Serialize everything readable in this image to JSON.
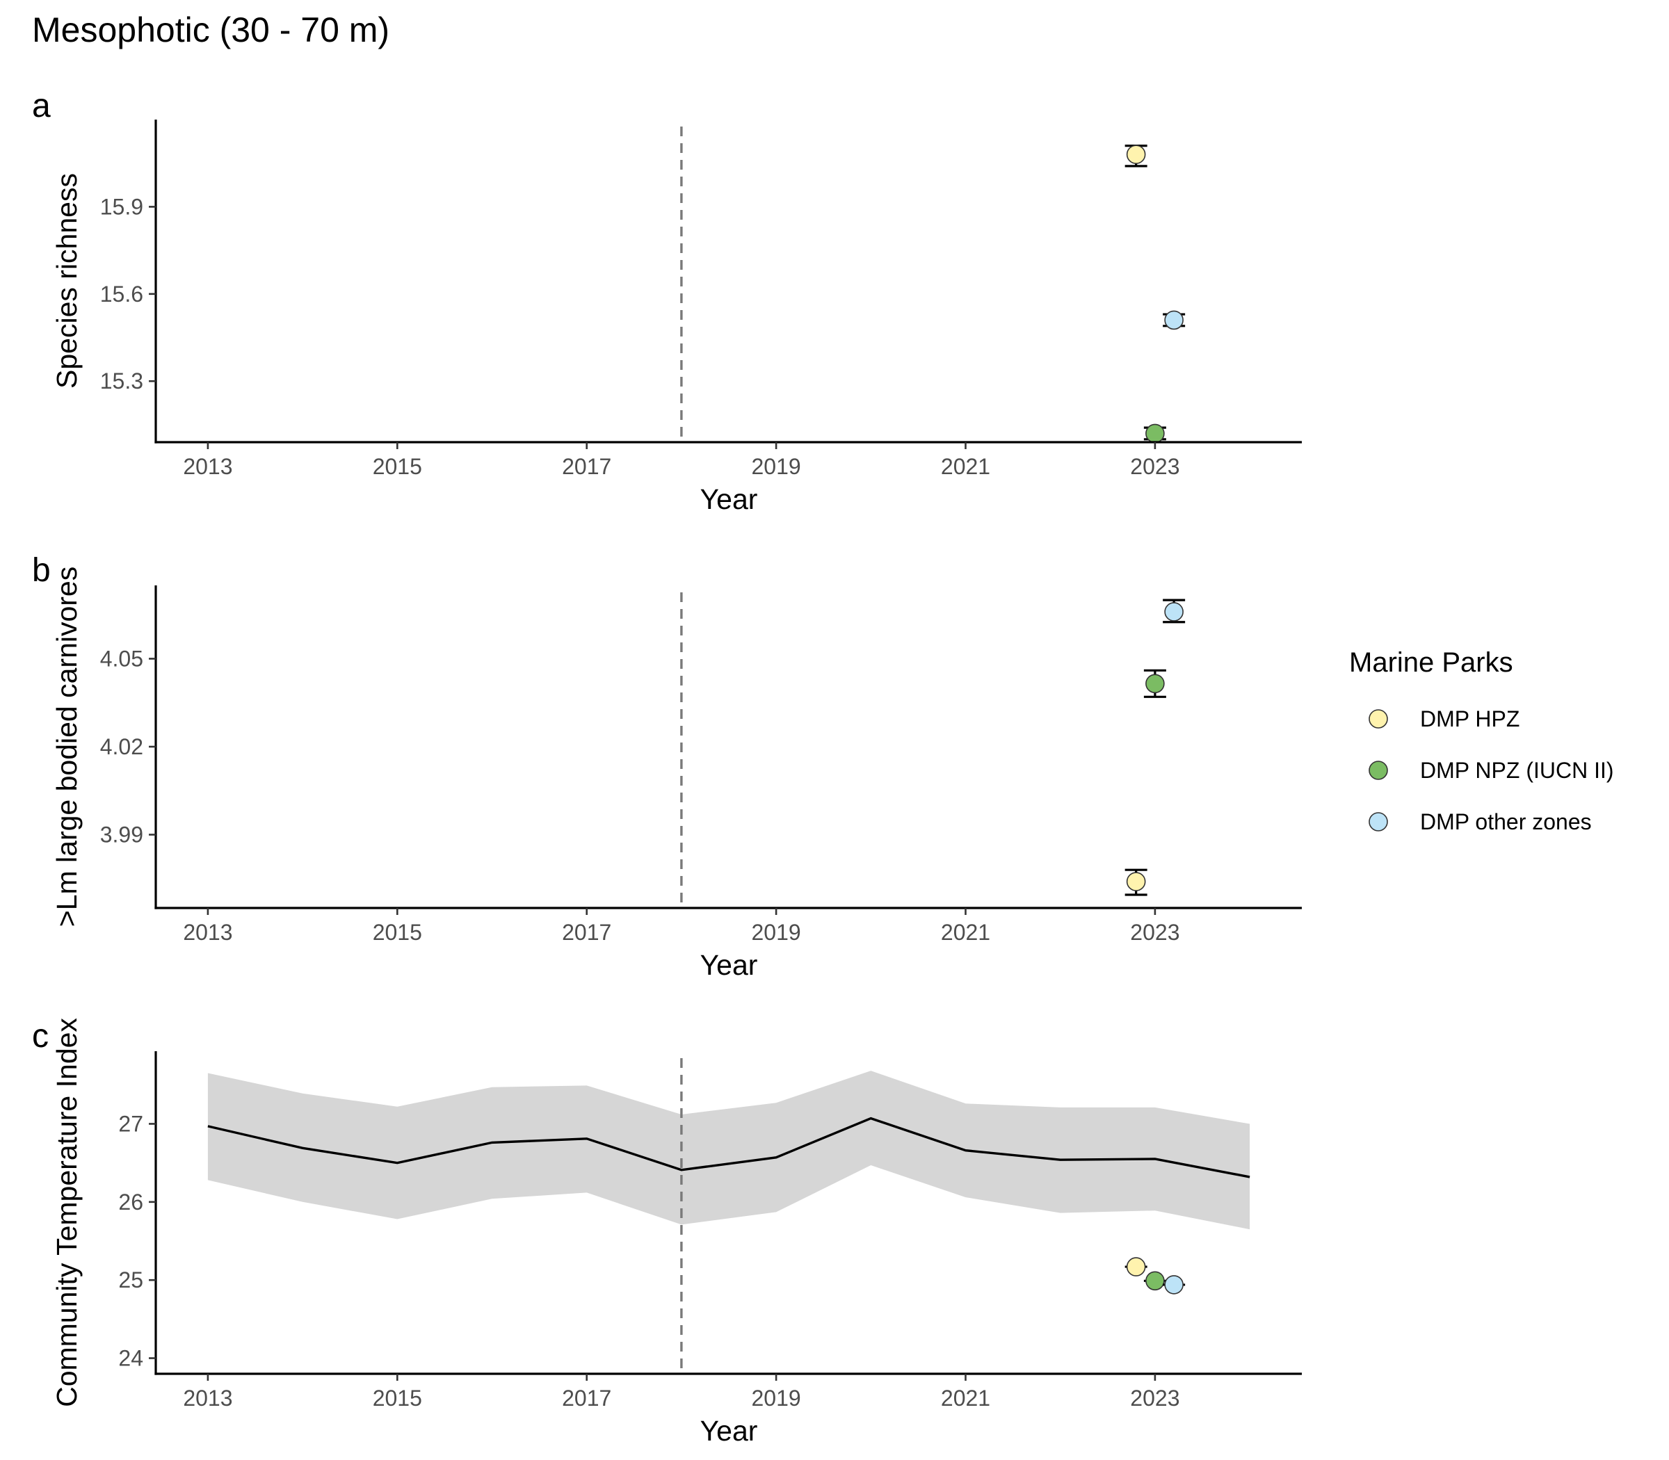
{
  "title": "Mesophotic (30 - 70 m)",
  "legend": {
    "title": "Marine Parks",
    "placement": "right",
    "entries": [
      {
        "label": "DMP HPZ",
        "color": "#FFF3AE"
      },
      {
        "label": "DMP NPZ (IUCN II)",
        "color": "#7BBC63"
      },
      {
        "label": "DMP other zones",
        "color": "#BDE3F7"
      }
    ]
  },
  "chart_data": [
    {
      "tag": "a",
      "type": "scatter",
      "xlabel": "Year",
      "ylabel": "Species richness",
      "xlim": [
        2012.45,
        2024.55
      ],
      "ylim": [
        15.09,
        16.2
      ],
      "x_ticks": [
        2013,
        2015,
        2017,
        2019,
        2021,
        2023
      ],
      "y_ticks": [
        15.3,
        15.6,
        15.9
      ],
      "y_tick_labels": [
        "15.3",
        "15.6",
        "15.9"
      ],
      "reference_x": 2018,
      "series": [
        {
          "name": "DMP HPZ",
          "points": [
            {
              "x": 2022.8,
              "y": 16.08,
              "lo": 16.04,
              "hi": 16.11
            }
          ]
        },
        {
          "name": "DMP NPZ (IUCN II)",
          "points": [
            {
              "x": 2023.0,
              "y": 15.12,
              "lo": 15.1,
              "hi": 15.14
            }
          ]
        },
        {
          "name": "DMP other zones",
          "points": [
            {
              "x": 2023.2,
              "y": 15.51,
              "lo": 15.49,
              "hi": 15.53
            }
          ]
        }
      ]
    },
    {
      "tag": "b",
      "type": "scatter",
      "xlabel": "Year",
      "ylabel": ">Lm large bodied carnivores",
      "xlim": [
        2012.45,
        2024.55
      ],
      "ylim": [
        3.965,
        4.075
      ],
      "x_ticks": [
        2013,
        2015,
        2017,
        2019,
        2021,
        2023
      ],
      "y_ticks": [
        3.99,
        4.02,
        4.05
      ],
      "y_tick_labels": [
        "3.99",
        "4.02",
        "4.05"
      ],
      "reference_x": 2018,
      "series": [
        {
          "name": "DMP HPZ",
          "points": [
            {
              "x": 2022.8,
              "y": 3.974,
              "lo": 3.9695,
              "hi": 3.978
            }
          ]
        },
        {
          "name": "DMP NPZ (IUCN II)",
          "points": [
            {
              "x": 2023.0,
              "y": 4.0415,
              "lo": 4.037,
              "hi": 4.046
            }
          ]
        },
        {
          "name": "DMP other zones",
          "points": [
            {
              "x": 2023.2,
              "y": 4.066,
              "lo": 4.0625,
              "hi": 4.07
            }
          ]
        }
      ]
    },
    {
      "tag": "c",
      "type": "line",
      "xlabel": "Year",
      "ylabel": "Community Temperature Index",
      "xlim": [
        2012.45,
        2024.55
      ],
      "ylim": [
        23.8,
        27.93
      ],
      "x_ticks": [
        2013,
        2015,
        2017,
        2019,
        2021,
        2023
      ],
      "y_ticks": [
        24,
        25,
        26,
        27
      ],
      "y_tick_labels": [
        "24",
        "25",
        "26",
        "27"
      ],
      "reference_x": 2018,
      "trend": {
        "x": [
          2013,
          2014,
          2015,
          2016,
          2017,
          2018,
          2019,
          2020,
          2021,
          2022,
          2023,
          2024
        ],
        "y": [
          26.97,
          26.69,
          26.5,
          26.76,
          26.81,
          26.41,
          26.57,
          27.07,
          26.66,
          26.54,
          26.55,
          26.32
        ],
        "lower": [
          26.28,
          26.0,
          25.78,
          26.04,
          26.12,
          25.71,
          25.87,
          26.47,
          26.06,
          25.86,
          25.89,
          25.65
        ],
        "upper": [
          27.65,
          27.39,
          27.22,
          27.47,
          27.49,
          27.12,
          27.27,
          27.68,
          27.26,
          27.21,
          27.21,
          27.0
        ]
      },
      "series": [
        {
          "name": "DMP HPZ",
          "points": [
            {
              "x": 2022.8,
              "y": 25.17,
              "lo": 25.17,
              "hi": 25.17
            }
          ]
        },
        {
          "name": "DMP NPZ (IUCN II)",
          "points": [
            {
              "x": 2023.0,
              "y": 24.99,
              "lo": 24.99,
              "hi": 24.99
            }
          ]
        },
        {
          "name": "DMP other zones",
          "points": [
            {
              "x": 2023.2,
              "y": 24.94,
              "lo": 24.94,
              "hi": 24.94
            }
          ]
        }
      ]
    }
  ]
}
